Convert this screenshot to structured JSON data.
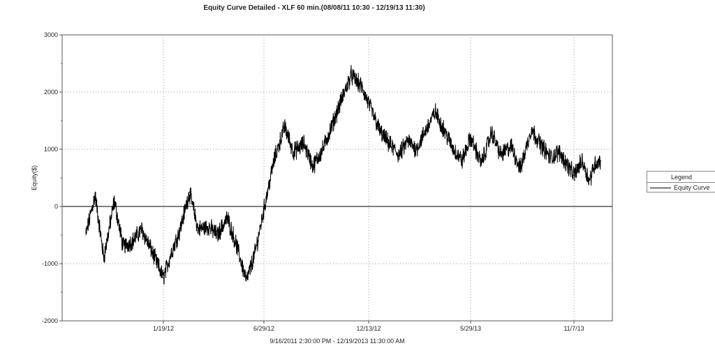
{
  "chart_data": {
    "type": "line",
    "title": "Equity Curve Detailed - XLF 60 min.(08/08/11 10:30 - 12/19/13 11:30)",
    "xlabel": "9/16/2011 2:30:00 PM - 12/19/2013 11:30:00 AM",
    "ylabel": "Equity($)",
    "ylim": [
      -2000,
      3000
    ],
    "yticks": [
      "3000",
      "2000",
      "1000",
      "0",
      "-1000",
      "-2000"
    ],
    "xticks": [
      "1/19/12",
      "6/29/12",
      "12/13/12",
      "5/29/13",
      "11/7/13"
    ],
    "grid": true,
    "legend": {
      "title": "Legend",
      "position": "right",
      "entries": [
        "Equity Curve"
      ]
    },
    "series": [
      {
        "name": "Equity Curve",
        "x": [
          "9/16/11",
          "10/1/11",
          "10/15/11",
          "11/1/11",
          "11/15/11",
          "12/1/11",
          "12/15/11",
          "1/1/12",
          "1/19/12",
          "2/1/12",
          "2/15/12",
          "3/1/12",
          "3/15/12",
          "4/1/12",
          "4/15/12",
          "5/1/12",
          "5/15/12",
          "6/1/12",
          "6/15/12",
          "6/29/12",
          "7/15/12",
          "8/1/12",
          "8/15/12",
          "9/1/12",
          "9/15/12",
          "10/1/12",
          "10/15/12",
          "11/1/12",
          "11/15/12",
          "12/1/12",
          "12/13/12",
          "1/1/13",
          "1/15/13",
          "2/1/13",
          "2/15/13",
          "3/1/13",
          "3/15/13",
          "4/1/13",
          "4/15/13",
          "5/1/13",
          "5/15/13",
          "5/29/13",
          "6/15/13",
          "7/1/13",
          "7/15/13",
          "8/1/13",
          "8/15/13",
          "9/1/13",
          "9/15/13",
          "10/1/13",
          "10/15/13",
          "11/1/13",
          "11/7/13",
          "11/20/13",
          "12/1/13",
          "12/10/13",
          "12/19/13"
        ],
        "values": [
          -500,
          200,
          -900,
          100,
          -700,
          -600,
          -400,
          -800,
          -1250,
          -800,
          -400,
          250,
          -400,
          -350,
          -500,
          -200,
          -650,
          -1300,
          -800,
          -50,
          800,
          1400,
          950,
          1100,
          700,
          1000,
          1400,
          1900,
          2300,
          2100,
          1800,
          1300,
          1100,
          900,
          1150,
          1000,
          1300,
          1650,
          1350,
          1000,
          800,
          1200,
          750,
          1300,
          900,
          1050,
          650,
          1350,
          1100,
          850,
          950,
          650,
          550,
          800,
          450,
          750,
          800
        ]
      }
    ]
  }
}
